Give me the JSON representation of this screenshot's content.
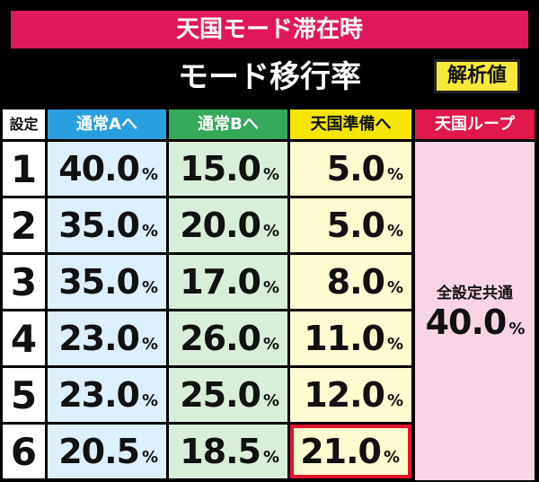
{
  "header": {
    "title": "天国モード滞在時",
    "subtitle": "モード移行率",
    "badge": "解析値"
  },
  "table": {
    "columns": [
      "設定",
      "通常Aへ",
      "通常Bへ",
      "天国準備へ",
      "天国ループ"
    ],
    "rows": [
      [
        "1",
        "40.0%",
        "15.0%",
        "5.0%"
      ],
      [
        "2",
        "35.0%",
        "20.0%",
        "5.0%"
      ],
      [
        "3",
        "35.0%",
        "17.0%",
        "8.0%"
      ],
      [
        "4",
        "23.0%",
        "26.0%",
        "11.0%"
      ],
      [
        "5",
        "23.0%",
        "25.0%",
        "12.0%"
      ],
      [
        "6",
        "20.5%",
        "18.5%",
        "21.0%"
      ]
    ],
    "merged_cell": {
      "label": "全設定共通",
      "value": "40.0%"
    }
  }
}
